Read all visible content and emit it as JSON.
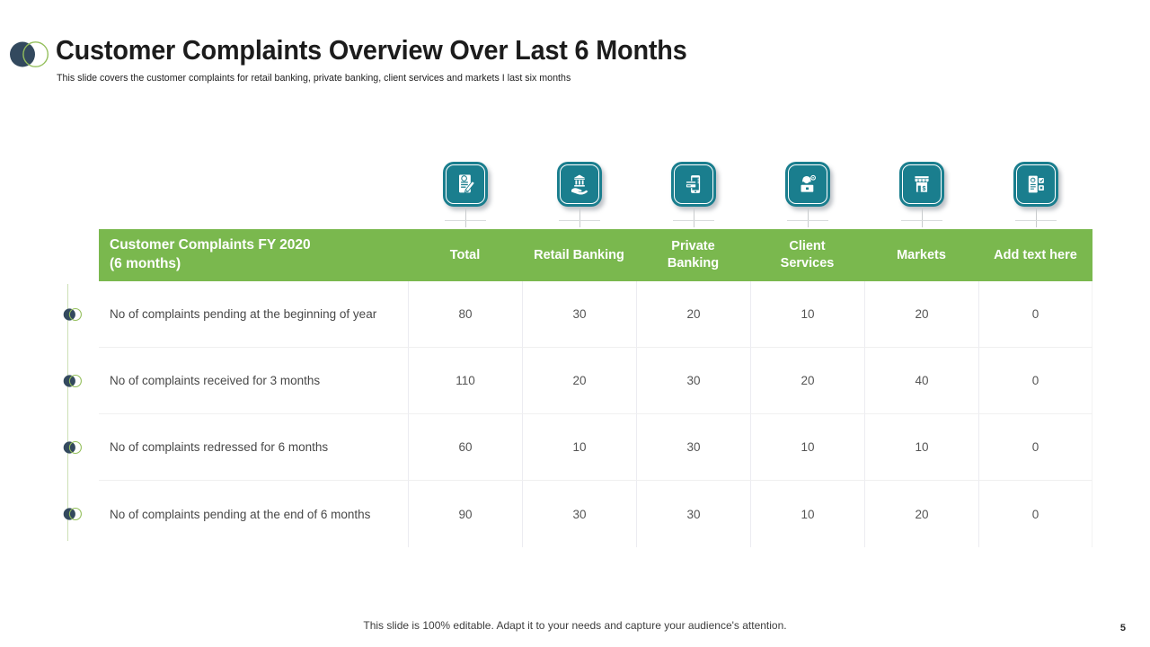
{
  "slide": {
    "title": "Customer Complaints Overview Over Last 6 Months",
    "subtitle": "This slide covers the customer complaints for retail banking, private banking, client services and markets I last six months",
    "footer": "This slide is 100% editable. Adapt it to your needs and capture your audience's attention.",
    "page_number": "5"
  },
  "colors": {
    "header_green": "#7ab84e",
    "accent_green_outline": "#94bf5c",
    "navy": "#33495e",
    "icon_teal": "#1a7e8e"
  },
  "table": {
    "row_header": "Customer Complaints FY 2020\n(6 months)",
    "columns": [
      {
        "label": "Total",
        "icon": "report-edit-icon"
      },
      {
        "label": "Retail Banking",
        "icon": "hand-bank-icon"
      },
      {
        "label": "Private\nBanking",
        "icon": "phone-card-icon"
      },
      {
        "label": "Client\nServices",
        "icon": "support-agent-icon"
      },
      {
        "label": "Markets",
        "icon": "storefront-icon"
      },
      {
        "label": "Add text here",
        "icon": "checklist-icon"
      }
    ],
    "rows": [
      {
        "label": "No of complaints pending at the beginning of year",
        "values": [
          80,
          30,
          20,
          10,
          20,
          0
        ]
      },
      {
        "label": "No of complaints received for 3 months",
        "values": [
          110,
          20,
          30,
          20,
          40,
          0
        ]
      },
      {
        "label": "No of complaints redressed for 6 months",
        "values": [
          60,
          10,
          30,
          10,
          10,
          0
        ]
      },
      {
        "label": "No of complaints pending at the end of 6 months",
        "values": [
          90,
          30,
          30,
          10,
          20,
          0
        ]
      }
    ]
  }
}
